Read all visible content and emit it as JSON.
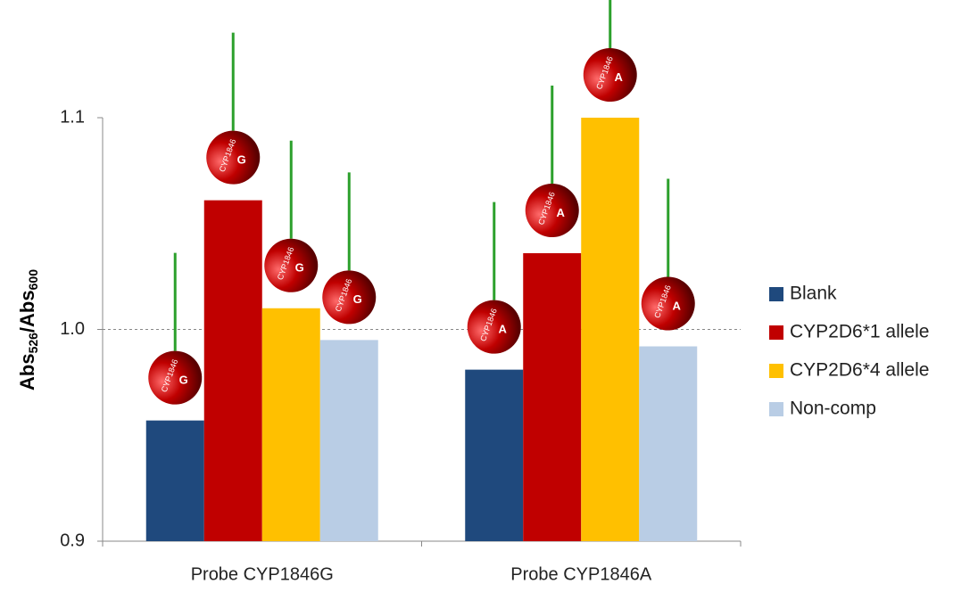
{
  "chart_data": {
    "type": "bar",
    "ylabel_parts": [
      {
        "text": "Abs"
      },
      {
        "text": "526",
        "sub": true
      },
      {
        "text": "/Abs"
      },
      {
        "text": "600",
        "sub": true
      }
    ],
    "categories": [
      "Probe CYP1846G",
      "Probe CYP1846A"
    ],
    "series": [
      {
        "name": "Blank",
        "color": "#1f497d",
        "values": [
          0.957,
          0.981
        ]
      },
      {
        "name": "CYP2D6*1 allele",
        "color": "#c00000",
        "values": [
          1.061,
          1.036
        ]
      },
      {
        "name": "CYP2D6*4 allele",
        "color": "#ffc000",
        "values": [
          1.01,
          1.1
        ]
      },
      {
        "name": "Non-comp",
        "color": "#b9cde5",
        "values": [
          0.995,
          0.992
        ]
      }
    ],
    "ylim": [
      0.9,
      1.1
    ],
    "yticks": [
      0.9,
      {
        "value": 1,
        "label": "1.0"
      },
      1.1
    ],
    "reference_line": 1,
    "legend": "right",
    "annotations": [
      [
        {
          "name": "CYP1846",
          "base": "G"
        },
        {
          "name": "CYP1846",
          "base": "A"
        }
      ],
      [
        {
          "name": "CYP1846",
          "base": "G"
        },
        {
          "name": "CYP1846",
          "base": "A"
        }
      ],
      [
        {
          "name": "CYP1846",
          "base": "G"
        },
        {
          "name": "CYP1846",
          "base": "A"
        }
      ],
      [
        {
          "name": "CYP1846",
          "base": "G"
        },
        {
          "name": "CYP1846",
          "base": "A"
        }
      ]
    ]
  }
}
